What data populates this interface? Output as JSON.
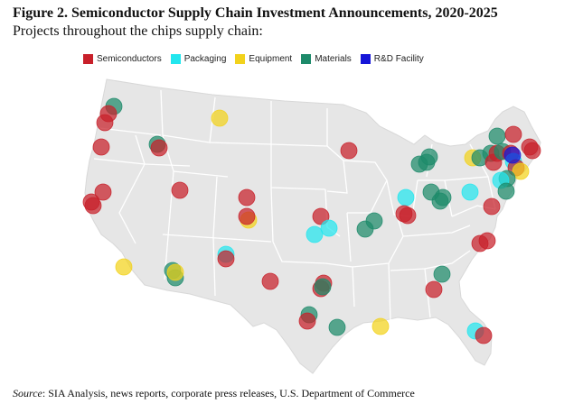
{
  "figure": {
    "title": "Figure 2. Semiconductor Supply Chain Investment Announcements, 2020-2025",
    "subtitle": "Projects throughout the chips supply chain:"
  },
  "legend": [
    {
      "label": "Semiconductors",
      "color": "#c8202a"
    },
    {
      "label": "Packaging",
      "color": "#22e6ee"
    },
    {
      "label": "Equipment",
      "color": "#f2d21c"
    },
    {
      "label": "Materials",
      "color": "#1d8a6a"
    },
    {
      "label": "R&D Facility",
      "color": "#1616d8"
    }
  ],
  "colors": {
    "map_fill": "#e6e6e6",
    "state_borders": "#ffffff"
  },
  "source": {
    "label": "Source",
    "text": ": SIA Analysis, news reports, corporate press releases, U.S. Department of Commerce"
  }
}
